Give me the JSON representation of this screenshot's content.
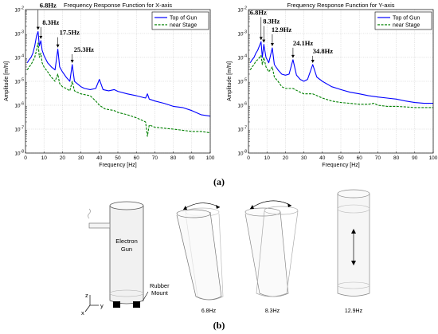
{
  "chart_data": [
    {
      "type": "line",
      "title": "Frequency Response Function for X-axis",
      "xlabel": "Frequency [Hz]",
      "ylabel": "Amplitude [m/N]",
      "xlim": [
        0,
        100
      ],
      "ylim": [
        1e-08,
        0.01
      ],
      "yscale": "log",
      "grid": true,
      "legend_position": "top-right",
      "x_ticks": [
        "0",
        "10",
        "20",
        "30",
        "40",
        "50",
        "60",
        "70",
        "80",
        "90",
        "100"
      ],
      "y_ticks": [
        "10^-8",
        "10^-7",
        "10^-6",
        "10^-5",
        "10^-4",
        "10^-3",
        "10^-2"
      ],
      "series": [
        {
          "name": "Top of Gun",
          "color": "#0000ff",
          "style": "solid",
          "points": [
            [
              1,
              6e-05
            ],
            [
              2,
              8e-05
            ],
            [
              3,
              0.0001
            ],
            [
              4,
              0.00015
            ],
            [
              5,
              0.0003
            ],
            [
              6,
              0.0008
            ],
            [
              6.8,
              0.0012
            ],
            [
              7.5,
              0.0003
            ],
            [
              8.3,
              0.0005
            ],
            [
              9,
              0.0002
            ],
            [
              10,
              0.00012
            ],
            [
              12,
              6e-05
            ],
            [
              14,
              4e-05
            ],
            [
              16,
              3e-05
            ],
            [
              17.5,
              0.00022
            ],
            [
              18.5,
              4e-05
            ],
            [
              20,
              2.5e-05
            ],
            [
              22,
              1.5e-05
            ],
            [
              24,
              1e-05
            ],
            [
              25.3,
              5e-05
            ],
            [
              26.5,
              1e-05
            ],
            [
              28,
              8e-06
            ],
            [
              30,
              6e-06
            ],
            [
              32,
              5e-06
            ],
            [
              35,
              4.5e-06
            ],
            [
              38,
              5e-06
            ],
            [
              40,
              1.2e-05
            ],
            [
              42,
              4.5e-06
            ],
            [
              45,
              4e-06
            ],
            [
              48,
              4.5e-06
            ],
            [
              50,
              3.8e-06
            ],
            [
              55,
              3e-06
            ],
            [
              60,
              2.5e-06
            ],
            [
              65,
              2e-06
            ],
            [
              66,
              3e-06
            ],
            [
              67,
              1.8e-06
            ],
            [
              70,
              1.5e-06
            ],
            [
              75,
              1.2e-06
            ],
            [
              80,
              9e-07
            ],
            [
              85,
              8e-07
            ],
            [
              90,
              6e-07
            ],
            [
              95,
              4e-07
            ],
            [
              100,
              3.5e-07
            ]
          ]
        },
        {
          "name": "near Stage",
          "color": "#008000",
          "style": "dashed",
          "points": [
            [
              1,
              3e-05
            ],
            [
              2,
              4e-05
            ],
            [
              3,
              5e-05
            ],
            [
              4,
              7e-05
            ],
            [
              5,
              0.0001
            ],
            [
              6,
              0.0002
            ],
            [
              6.8,
              0.0004
            ],
            [
              7.5,
              0.0001
            ],
            [
              8.3,
              0.00015
            ],
            [
              9,
              6e-05
            ],
            [
              10,
              4e-05
            ],
            [
              12,
              2.5e-05
            ],
            [
              14,
              1.5e-05
            ],
            [
              16,
              1e-05
            ],
            [
              17.5,
              2e-05
            ],
            [
              18.5,
              8e-06
            ],
            [
              20,
              6e-06
            ],
            [
              22,
              5e-06
            ],
            [
              24,
              4e-06
            ],
            [
              25.3,
              1e-05
            ],
            [
              26.5,
              4e-06
            ],
            [
              28,
              3.5e-06
            ],
            [
              30,
              3e-06
            ],
            [
              35,
              2.5e-06
            ],
            [
              38,
              1.5e-06
            ],
            [
              40,
              1e-06
            ],
            [
              43,
              7e-07
            ],
            [
              48,
              6e-07
            ],
            [
              50,
              5e-07
            ],
            [
              55,
              4e-07
            ],
            [
              60,
              3e-07
            ],
            [
              65,
              2e-07
            ],
            [
              66,
              5e-08
            ],
            [
              67,
              1.5e-07
            ],
            [
              70,
              1.2e-07
            ],
            [
              75,
              1.1e-07
            ],
            [
              80,
              1e-07
            ],
            [
              85,
              9e-08
            ],
            [
              90,
              8e-08
            ],
            [
              95,
              8e-08
            ],
            [
              100,
              7e-08
            ]
          ]
        }
      ],
      "annotations": [
        {
          "text": "6.8Hz",
          "x": 6.8,
          "y": 0.0012
        },
        {
          "text": "8.3Hz",
          "x": 8.3,
          "y": 0.0005
        },
        {
          "text": "17.5Hz",
          "x": 17.5,
          "y": 0.00022
        },
        {
          "text": "25.3Hz",
          "x": 25.3,
          "y": 5e-05
        }
      ]
    },
    {
      "type": "line",
      "title": "Frequency Response Function for Y-axis",
      "xlabel": "Frequency [Hz]",
      "ylabel": "Amplitude [m/N]",
      "xlim": [
        0,
        100
      ],
      "ylim": [
        1e-08,
        0.01
      ],
      "yscale": "log",
      "grid": true,
      "legend_position": "top-right",
      "x_ticks": [
        "0",
        "10",
        "20",
        "30",
        "40",
        "50",
        "60",
        "70",
        "80",
        "90",
        "100"
      ],
      "y_ticks": [
        "10^-8",
        "10^-7",
        "10^-6",
        "10^-5",
        "10^-4",
        "10^-3",
        "10^-2"
      ],
      "series": [
        {
          "name": "Top of Gun",
          "color": "#0000ff",
          "style": "solid",
          "points": [
            [
              1,
              6e-05
            ],
            [
              2,
              8e-05
            ],
            [
              3,
              0.0001
            ],
            [
              4,
              0.00015
            ],
            [
              5,
              0.0002
            ],
            [
              6.8,
              0.00045
            ],
            [
              7.5,
              0.0001
            ],
            [
              8.3,
              0.00035
            ],
            [
              9.5,
              0.0001
            ],
            [
              11,
              6e-05
            ],
            [
              12.9,
              0.00025
            ],
            [
              14,
              5e-05
            ],
            [
              16,
              3e-05
            ],
            [
              18,
              2e-05
            ],
            [
              20,
              1.8e-05
            ],
            [
              22,
              2e-05
            ],
            [
              24.1,
              8e-05
            ],
            [
              26,
              1.8e-05
            ],
            [
              28,
              1.2e-05
            ],
            [
              30,
              1e-05
            ],
            [
              32,
              1.2e-05
            ],
            [
              34.8,
              5e-05
            ],
            [
              37,
              1.5e-05
            ],
            [
              40,
              1e-05
            ],
            [
              45,
              6e-06
            ],
            [
              50,
              4.5e-06
            ],
            [
              55,
              3.5e-06
            ],
            [
              60,
              3e-06
            ],
            [
              65,
              2.5e-06
            ],
            [
              70,
              2.2e-06
            ],
            [
              75,
              2e-06
            ],
            [
              80,
              1.8e-06
            ],
            [
              85,
              1.5e-06
            ],
            [
              90,
              1.3e-06
            ],
            [
              95,
              1.2e-06
            ],
            [
              100,
              1.2e-06
            ]
          ]
        },
        {
          "name": "near Stage",
          "color": "#008000",
          "style": "dashed",
          "points": [
            [
              1,
              3e-05
            ],
            [
              2,
              4e-05
            ],
            [
              3,
              5e-05
            ],
            [
              4,
              7e-05
            ],
            [
              5,
              8e-05
            ],
            [
              6.8,
              0.00012
            ],
            [
              7.5,
              5e-05
            ],
            [
              8.3,
              0.0001
            ],
            [
              9.5,
              4e-05
            ],
            [
              11,
              2.5e-05
            ],
            [
              12.9,
              4e-05
            ],
            [
              14,
              1.5e-05
            ],
            [
              16,
              1e-05
            ],
            [
              18,
              6e-06
            ],
            [
              20,
              5e-06
            ],
            [
              24.1,
              5e-06
            ],
            [
              28,
              3.5e-06
            ],
            [
              30,
              3e-06
            ],
            [
              34.8,
              3e-06
            ],
            [
              40,
              2e-06
            ],
            [
              45,
              1.5e-06
            ],
            [
              50,
              1.3e-06
            ],
            [
              55,
              1.2e-06
            ],
            [
              60,
              1.1e-06
            ],
            [
              65,
              1.1e-06
            ],
            [
              68,
              1.2e-06
            ],
            [
              70,
              1e-06
            ],
            [
              75,
              9e-07
            ],
            [
              80,
              9e-07
            ],
            [
              85,
              8.5e-07
            ],
            [
              90,
              8e-07
            ],
            [
              95,
              8e-07
            ],
            [
              100,
              8e-07
            ]
          ]
        }
      ],
      "annotations": [
        {
          "text": "6.8Hz",
          "x": 6.8,
          "y": 0.00045
        },
        {
          "text": "8.3Hz",
          "x": 8.3,
          "y": 0.00035
        },
        {
          "text": "12.9Hz",
          "x": 12.9,
          "y": 0.00025
        },
        {
          "text": "24.1Hz",
          "x": 24.1,
          "y": 8e-05
        },
        {
          "text": "34.8Hz",
          "x": 34.8,
          "y": 5e-05
        }
      ]
    }
  ],
  "panel_labels": {
    "a": "(a)",
    "b": "(b)"
  },
  "diagram": {
    "gun_label_line1": "Electron",
    "gun_label_line2": "Gun",
    "mount_label_line1": "Rubber",
    "mount_label_line2": "Mount",
    "axis_z": "z",
    "axis_y": "y",
    "axis_x": "x",
    "mode_labels": [
      "6.8Hz",
      "8.3Hz",
      "12.9Hz"
    ]
  }
}
